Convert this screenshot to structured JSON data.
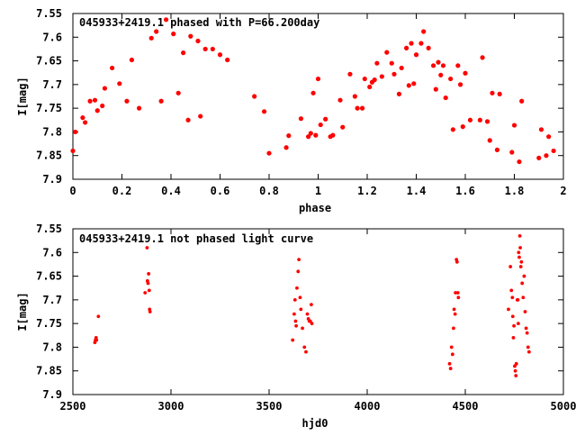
{
  "chart_data": [
    {
      "type": "scatter",
      "title": "045933+2419.1 phased with P=66.200day",
      "xlabel": "phase",
      "ylabel": "I[mag]",
      "xlim": [
        0,
        2
      ],
      "ylim": [
        7.9,
        7.55
      ],
      "y_inverted": true,
      "xticks": [
        "0",
        "0.2",
        "0.4",
        "0.6",
        "0.8",
        "1",
        "1.2",
        "1.4",
        "1.6",
        "1.8",
        "2"
      ],
      "xtick_values": [
        0,
        0.2,
        0.4,
        0.6,
        0.8,
        1,
        1.2,
        1.4,
        1.6,
        1.8,
        2
      ],
      "yticks": [
        "7.55",
        "7.6",
        "7.65",
        "7.7",
        "7.75",
        "7.8",
        "7.85",
        "7.9"
      ],
      "ytick_values": [
        7.55,
        7.6,
        7.65,
        7.7,
        7.75,
        7.8,
        7.85,
        7.9
      ],
      "marker_color": "#ff0000",
      "points": [
        [
          0.0,
          7.84
        ],
        [
          0.01,
          7.8
        ],
        [
          0.04,
          7.77
        ],
        [
          0.05,
          7.78
        ],
        [
          0.07,
          7.735
        ],
        [
          0.09,
          7.733
        ],
        [
          0.1,
          7.755
        ],
        [
          0.12,
          7.745
        ],
        [
          0.13,
          7.708
        ],
        [
          0.16,
          7.665
        ],
        [
          0.19,
          7.698
        ],
        [
          0.22,
          7.735
        ],
        [
          0.24,
          7.648
        ],
        [
          0.27,
          7.75
        ],
        [
          0.32,
          7.602
        ],
        [
          0.34,
          7.588
        ],
        [
          0.36,
          7.735
        ],
        [
          0.38,
          7.563
        ],
        [
          0.41,
          7.593
        ],
        [
          0.43,
          7.718
        ],
        [
          0.45,
          7.633
        ],
        [
          0.47,
          7.775
        ],
        [
          0.48,
          7.598
        ],
        [
          0.51,
          7.608
        ],
        [
          0.52,
          7.767
        ],
        [
          0.54,
          7.625
        ],
        [
          0.57,
          7.625
        ],
        [
          0.6,
          7.637
        ],
        [
          0.63,
          7.648
        ],
        [
          0.74,
          7.725
        ],
        [
          0.78,
          7.757
        ],
        [
          0.8,
          7.845
        ],
        [
          0.87,
          7.833
        ],
        [
          0.88,
          7.808
        ],
        [
          0.93,
          7.772
        ],
        [
          0.96,
          7.81
        ],
        [
          0.97,
          7.803
        ],
        [
          0.98,
          7.718
        ],
        [
          0.99,
          7.807
        ],
        [
          1.0,
          7.688
        ],
        [
          1.01,
          7.785
        ],
        [
          1.03,
          7.773
        ],
        [
          1.05,
          7.81
        ],
        [
          1.06,
          7.807
        ],
        [
          1.09,
          7.733
        ],
        [
          1.1,
          7.79
        ],
        [
          1.13,
          7.678
        ],
        [
          1.15,
          7.725
        ],
        [
          1.16,
          7.75
        ],
        [
          1.18,
          7.75
        ],
        [
          1.19,
          7.688
        ],
        [
          1.21,
          7.705
        ],
        [
          1.22,
          7.695
        ],
        [
          1.23,
          7.69
        ],
        [
          1.24,
          7.655
        ],
        [
          1.26,
          7.683
        ],
        [
          1.28,
          7.632
        ],
        [
          1.3,
          7.655
        ],
        [
          1.31,
          7.678
        ],
        [
          1.33,
          7.72
        ],
        [
          1.34,
          7.665
        ],
        [
          1.36,
          7.623
        ],
        [
          1.37,
          7.702
        ],
        [
          1.38,
          7.613
        ],
        [
          1.39,
          7.698
        ],
        [
          1.4,
          7.637
        ],
        [
          1.42,
          7.613
        ],
        [
          1.43,
          7.588
        ],
        [
          1.45,
          7.623
        ],
        [
          1.47,
          7.66
        ],
        [
          1.48,
          7.71
        ],
        [
          1.49,
          7.653
        ],
        [
          1.5,
          7.68
        ],
        [
          1.51,
          7.66
        ],
        [
          1.52,
          7.728
        ],
        [
          1.54,
          7.688
        ],
        [
          1.55,
          7.795
        ],
        [
          1.57,
          7.66
        ],
        [
          1.58,
          7.7
        ],
        [
          1.59,
          7.789
        ],
        [
          1.6,
          7.676
        ],
        [
          1.62,
          7.775
        ],
        [
          1.66,
          7.775
        ],
        [
          1.67,
          7.643
        ],
        [
          1.69,
          7.778
        ],
        [
          1.7,
          7.818
        ],
        [
          1.71,
          7.718
        ],
        [
          1.73,
          7.838
        ],
        [
          1.74,
          7.72
        ],
        [
          1.79,
          7.843
        ],
        [
          1.8,
          7.786
        ],
        [
          1.82,
          7.863
        ],
        [
          1.83,
          7.735
        ],
        [
          1.9,
          7.855
        ],
        [
          1.91,
          7.795
        ],
        [
          1.93,
          7.85
        ],
        [
          1.94,
          7.81
        ],
        [
          1.96,
          7.84
        ]
      ]
    },
    {
      "type": "scatter",
      "title": "045933+2419.1 not phased light curve",
      "xlabel": "hjd0",
      "ylabel": "I[mag]",
      "xlim": [
        2500,
        5000
      ],
      "ylim": [
        7.9,
        7.55
      ],
      "y_inverted": true,
      "xticks": [
        "2500",
        "3000",
        "3500",
        "4000",
        "4500",
        "5000"
      ],
      "xtick_values": [
        2500,
        3000,
        3500,
        4000,
        4500,
        5000
      ],
      "yticks": [
        "7.55",
        "7.6",
        "7.65",
        "7.7",
        "7.75",
        "7.8",
        "7.85",
        "7.9"
      ],
      "ytick_values": [
        7.55,
        7.6,
        7.65,
        7.7,
        7.75,
        7.8,
        7.85,
        7.9
      ],
      "marker_color": "#ff0000",
      "points": [
        [
          2612,
          7.79
        ],
        [
          2615,
          7.785
        ],
        [
          2618,
          7.78
        ],
        [
          2620,
          7.785
        ],
        [
          2630,
          7.735
        ],
        [
          2868,
          7.685
        ],
        [
          2878,
          7.59
        ],
        [
          2880,
          7.66
        ],
        [
          2883,
          7.665
        ],
        [
          2886,
          7.645
        ],
        [
          2889,
          7.68
        ],
        [
          2891,
          7.72
        ],
        [
          2893,
          7.725
        ],
        [
          3620,
          7.785
        ],
        [
          3628,
          7.73
        ],
        [
          3632,
          7.7
        ],
        [
          3635,
          7.745
        ],
        [
          3638,
          7.755
        ],
        [
          3642,
          7.675
        ],
        [
          3648,
          7.64
        ],
        [
          3652,
          7.615
        ],
        [
          3658,
          7.695
        ],
        [
          3662,
          7.72
        ],
        [
          3670,
          7.76
        ],
        [
          3680,
          7.8
        ],
        [
          3688,
          7.81
        ],
        [
          3695,
          7.73
        ],
        [
          3700,
          7.74
        ],
        [
          3705,
          7.745
        ],
        [
          3710,
          7.745
        ],
        [
          3715,
          7.71
        ],
        [
          3718,
          7.75
        ],
        [
          4420,
          7.835
        ],
        [
          4425,
          7.845
        ],
        [
          4430,
          7.8
        ],
        [
          4435,
          7.815
        ],
        [
          4440,
          7.76
        ],
        [
          4443,
          7.72
        ],
        [
          4448,
          7.73
        ],
        [
          4450,
          7.685
        ],
        [
          4455,
          7.615
        ],
        [
          4458,
          7.62
        ],
        [
          4462,
          7.685
        ],
        [
          4465,
          7.695
        ],
        [
          4720,
          7.72
        ],
        [
          4730,
          7.63
        ],
        [
          4735,
          7.68
        ],
        [
          4740,
          7.695
        ],
        [
          4742,
          7.735
        ],
        [
          4745,
          7.78
        ],
        [
          4748,
          7.755
        ],
        [
          4752,
          7.84
        ],
        [
          4755,
          7.85
        ],
        [
          4758,
          7.86
        ],
        [
          4760,
          7.835
        ],
        [
          4765,
          7.7
        ],
        [
          4768,
          7.7
        ],
        [
          4770,
          7.75
        ],
        [
          4772,
          7.6
        ],
        [
          4775,
          7.61
        ],
        [
          4778,
          7.565
        ],
        [
          4780,
          7.59
        ],
        [
          4783,
          7.63
        ],
        [
          4786,
          7.62
        ],
        [
          4790,
          7.665
        ],
        [
          4795,
          7.695
        ],
        [
          4800,
          7.65
        ],
        [
          4805,
          7.725
        ],
        [
          4810,
          7.76
        ],
        [
          4815,
          7.77
        ],
        [
          4820,
          7.8
        ],
        [
          4825,
          7.81
        ]
      ]
    }
  ]
}
